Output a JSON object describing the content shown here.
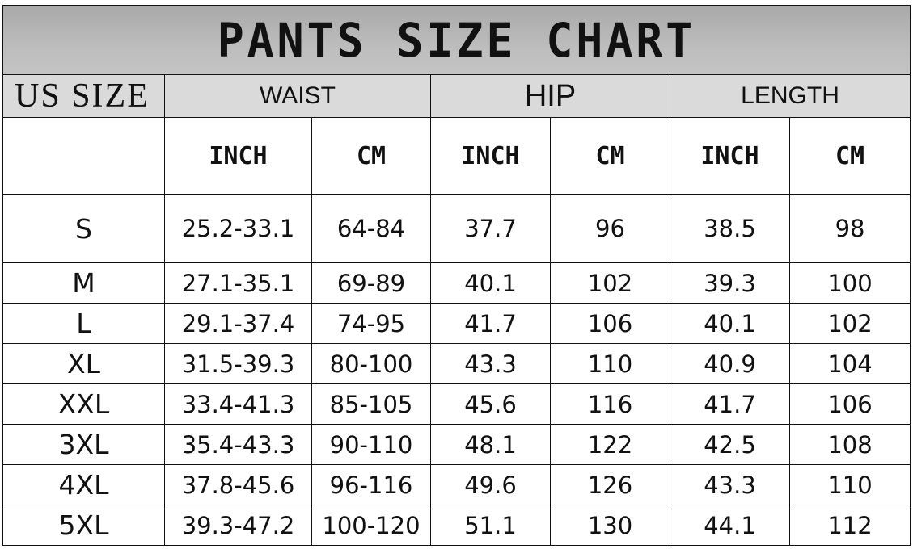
{
  "title": "PANTS SIZE CHART",
  "headers": {
    "us_size": "US SIZE",
    "waist": "WAIST",
    "hip": "HIP",
    "length": "LENGTH",
    "units": [
      "INCH",
      "CM",
      "INCH",
      "CM",
      "INCH",
      "CM"
    ]
  },
  "colors": {
    "title_band": "#b3b3b3",
    "header_band": "#dadada",
    "border": "#111111"
  },
  "rows": [
    {
      "size": "S",
      "waist_inch": "25.2-33.1",
      "waist_cm": "64-84",
      "hip_inch": "37.7",
      "hip_cm": "96",
      "length_inch": "38.5",
      "length_cm": "98"
    },
    {
      "size": "M",
      "waist_inch": "27.1-35.1",
      "waist_cm": "69-89",
      "hip_inch": "40.1",
      "hip_cm": "102",
      "length_inch": "39.3",
      "length_cm": "100"
    },
    {
      "size": "L",
      "waist_inch": "29.1-37.4",
      "waist_cm": "74-95",
      "hip_inch": "41.7",
      "hip_cm": "106",
      "length_inch": "40.1",
      "length_cm": "102"
    },
    {
      "size": "XL",
      "waist_inch": "31.5-39.3",
      "waist_cm": "80-100",
      "hip_inch": "43.3",
      "hip_cm": "110",
      "length_inch": "40.9",
      "length_cm": "104"
    },
    {
      "size": "XXL",
      "waist_inch": "33.4-41.3",
      "waist_cm": "85-105",
      "hip_inch": "45.6",
      "hip_cm": "116",
      "length_inch": "41.7",
      "length_cm": "106"
    },
    {
      "size": "3XL",
      "waist_inch": "35.4-43.3",
      "waist_cm": "90-110",
      "hip_inch": "48.1",
      "hip_cm": "122",
      "length_inch": "42.5",
      "length_cm": "108"
    },
    {
      "size": "4XL",
      "waist_inch": "37.8-45.6",
      "waist_cm": "96-116",
      "hip_inch": "49.6",
      "hip_cm": "126",
      "length_inch": "43.3",
      "length_cm": "110"
    },
    {
      "size": "5XL",
      "waist_inch": "39.3-47.2",
      "waist_cm": "100-120",
      "hip_inch": "51.1",
      "hip_cm": "130",
      "length_inch": "44.1",
      "length_cm": "112"
    }
  ]
}
